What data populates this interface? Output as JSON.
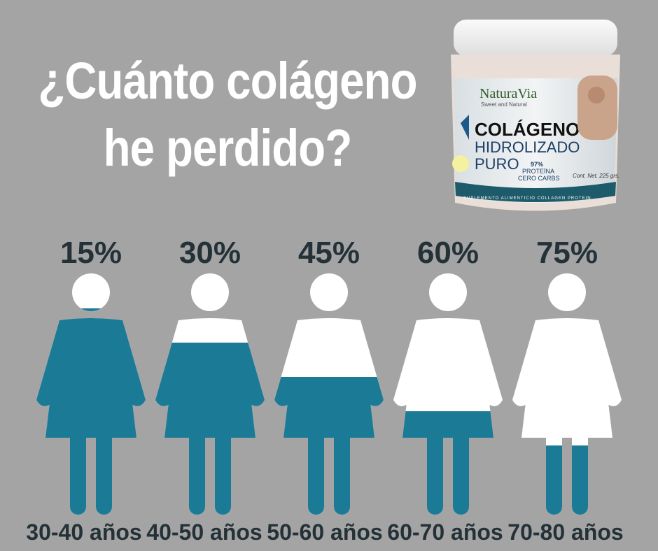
{
  "title": {
    "line1": "¿Cuánto colágeno",
    "line2": "he perdido?"
  },
  "product": {
    "brand": "NaturaVia",
    "tagline": "Sweet and Natural",
    "name1": "COLÁGENO",
    "name2": "HIDROLIZADO",
    "name3": "PURO",
    "protein": "97%",
    "protein_label": "PROTEÍNA",
    "carbs": "CERO CARBS",
    "net": "Cont. Net. 225 grs.",
    "band": "SUPLEMENTO ALIMENTICIO  COLLAGEN PROTEIN"
  },
  "colors": {
    "background": "#a4a4a4",
    "fill": "#1b7a95",
    "lost": "#ffffff",
    "text": "#243238"
  },
  "chart_data": {
    "type": "pictogram",
    "categories": [
      "30-40 años",
      "40-50 años",
      "50-60 años",
      "60-70 años",
      "70-80 años"
    ],
    "values": [
      15,
      30,
      45,
      60,
      75
    ],
    "labels": [
      "15%",
      "30%",
      "45%",
      "60%",
      "75%"
    ],
    "unit": "%"
  }
}
